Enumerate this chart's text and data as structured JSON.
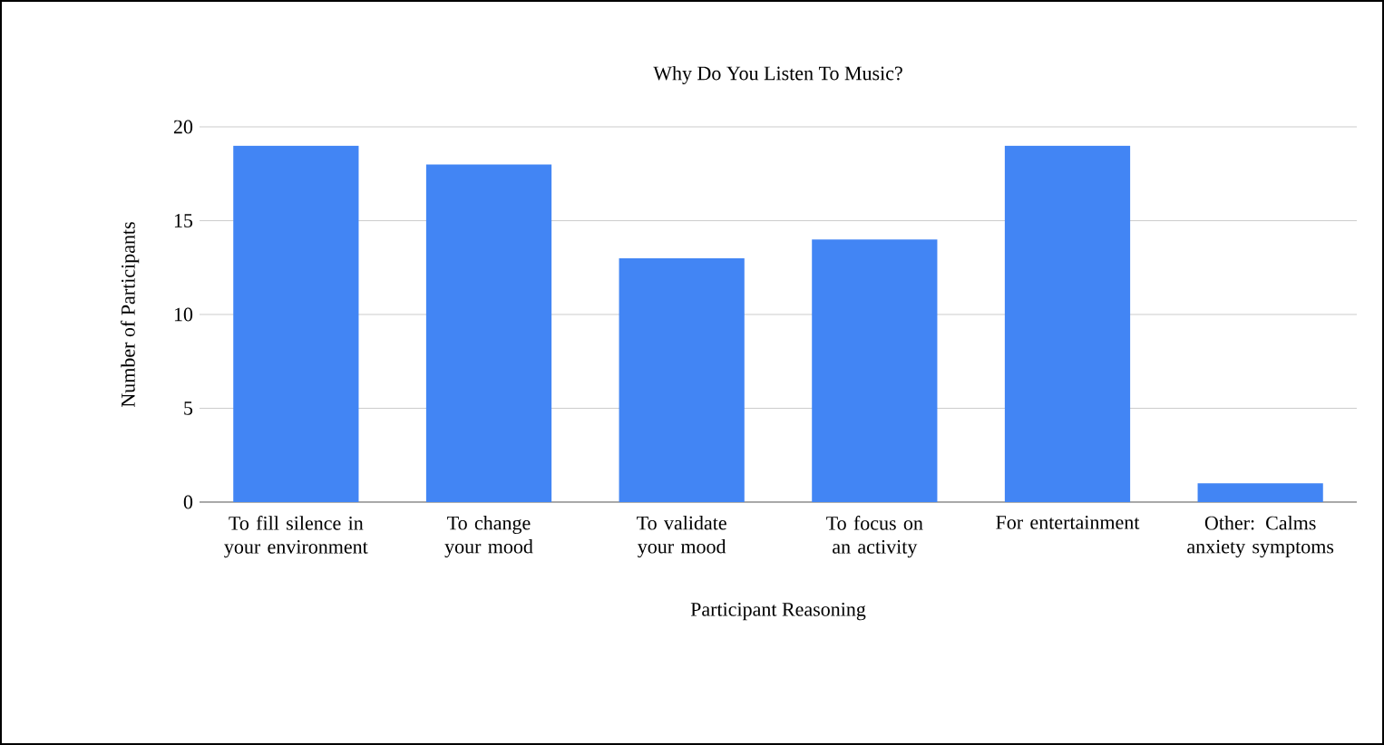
{
  "chart_data": {
    "type": "bar",
    "title": "Why Do You Listen To Music?",
    "xlabel": "Participant Reasoning",
    "ylabel": "Number of Participants",
    "categories": [
      "To fill silence in your environment",
      "To change your mood",
      "To validate your mood",
      "To focus on an activity",
      "For entertainment",
      "Other: Calms anxiety symptoms"
    ],
    "values": [
      19,
      18,
      13,
      14,
      19,
      1
    ],
    "color": "#4285f4",
    "ylim": [
      0,
      20
    ],
    "yticks": [
      0,
      5,
      10,
      15,
      20
    ],
    "grid": "y"
  }
}
